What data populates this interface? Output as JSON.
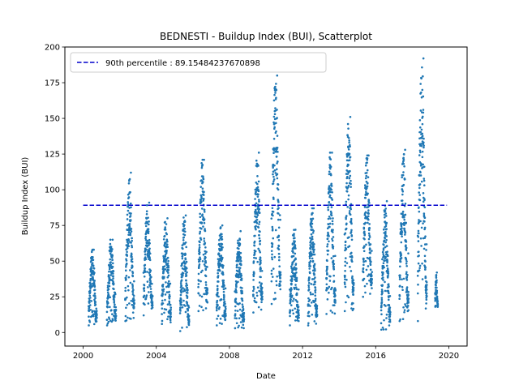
{
  "chart_data": {
    "type": "scatter",
    "title": "BEDNESTI - Buildup Index (BUI), Scatterplot",
    "xlabel": "Date",
    "ylabel": "Buildup Index (BUI)",
    "xlim": [
      1999.0,
      2021.0
    ],
    "ylim": [
      -9.5,
      200.0
    ],
    "x_ticks": [
      2000,
      2004,
      2008,
      2012,
      2016,
      2020
    ],
    "x_tick_labels": [
      "2000",
      "2004",
      "2008",
      "2012",
      "2016",
      "2020"
    ],
    "y_ticks": [
      0,
      25,
      50,
      75,
      100,
      125,
      150,
      175,
      200
    ],
    "y_tick_labels": [
      "0",
      "25",
      "50",
      "75",
      "100",
      "125",
      "150",
      "175",
      "200"
    ],
    "grid": false,
    "legend": {
      "placement": "upper-left",
      "entries": [
        "90th percentile : 89.15484237670898"
      ]
    },
    "reference_line": {
      "name": "90th percentile : 89.15484237670898",
      "y": 89.15484237670898,
      "x_start": 2000.0,
      "x_end": 2019.9,
      "style": "dashed",
      "color": "#0000cc"
    },
    "point_color": "#1f77b4",
    "seasons": [
      {
        "start": 2000.3,
        "end": 2000.75,
        "min": 5,
        "max": 58
      },
      {
        "start": 2001.3,
        "end": 2001.8,
        "min": 5,
        "max": 65
      },
      {
        "start": 2002.3,
        "end": 2002.8,
        "min": 8,
        "max": 112
      },
      {
        "start": 2003.3,
        "end": 2003.8,
        "min": 12,
        "max": 91
      },
      {
        "start": 2004.3,
        "end": 2004.8,
        "min": 6,
        "max": 80
      },
      {
        "start": 2005.3,
        "end": 2005.8,
        "min": 1,
        "max": 82
      },
      {
        "start": 2006.3,
        "end": 2006.8,
        "min": 15,
        "max": 121
      },
      {
        "start": 2007.3,
        "end": 2007.8,
        "min": 5,
        "max": 75
      },
      {
        "start": 2008.3,
        "end": 2008.8,
        "min": 3,
        "max": 71
      },
      {
        "start": 2009.3,
        "end": 2009.8,
        "min": 14,
        "max": 126
      },
      {
        "start": 2010.3,
        "end": 2010.8,
        "min": 20,
        "max": 180
      },
      {
        "start": 2011.3,
        "end": 2011.8,
        "min": 5,
        "max": 72
      },
      {
        "start": 2012.3,
        "end": 2012.8,
        "min": 5,
        "max": 87
      },
      {
        "start": 2013.3,
        "end": 2013.8,
        "min": 13,
        "max": 126
      },
      {
        "start": 2014.3,
        "end": 2014.8,
        "min": 15,
        "max": 151
      },
      {
        "start": 2015.3,
        "end": 2015.8,
        "min": 25,
        "max": 124
      },
      {
        "start": 2016.3,
        "end": 2016.8,
        "min": 2,
        "max": 92
      },
      {
        "start": 2017.3,
        "end": 2017.8,
        "min": 8,
        "max": 128
      },
      {
        "start": 2018.3,
        "end": 2018.8,
        "min": 8,
        "max": 192
      },
      {
        "start": 2019.25,
        "end": 2019.4,
        "min": 18,
        "max": 42
      }
    ]
  }
}
